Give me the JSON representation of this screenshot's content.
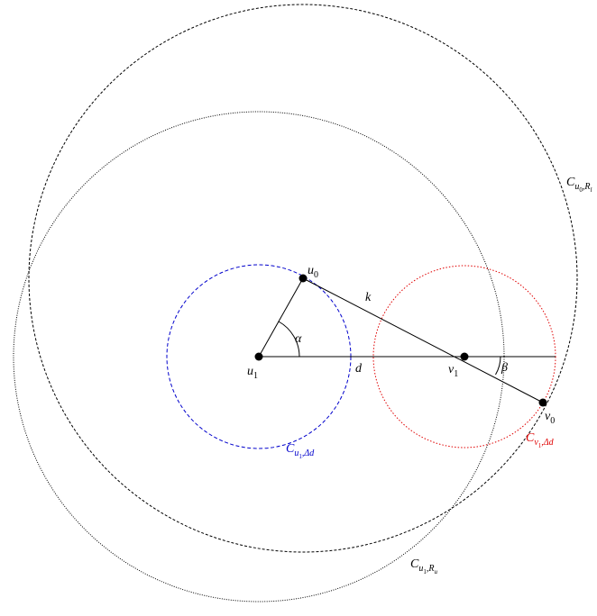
{
  "points": {
    "u0": {
      "base": "u",
      "sub": "0"
    },
    "u1": {
      "base": "u",
      "sub": "1"
    },
    "v1": {
      "base": "v",
      "sub": "1"
    },
    "v0": {
      "base": "v",
      "sub": "0"
    }
  },
  "segments": {
    "k": "k",
    "d": "d"
  },
  "angles": {
    "alpha": "α",
    "beta": "β"
  },
  "circles": {
    "u1_delta": {
      "base": "C",
      "sub": {
        "base": "u",
        "sub": "1"
      },
      "sub_rest": ",Δd"
    },
    "v1_delta": {
      "base": "C",
      "sub": {
        "base": "v",
        "sub": "1"
      },
      "sub_rest": ",Δd"
    },
    "u0_rl": {
      "base": "C",
      "sub": {
        "base": "u",
        "sub": "0"
      },
      "sub_rest": ",R",
      "sub_rest_sub": "l"
    },
    "u1_ru": {
      "base": "C",
      "sub": {
        "base": "u",
        "sub": "1"
      },
      "sub_rest": ",R",
      "sub_rest_sub": "u"
    }
  }
}
